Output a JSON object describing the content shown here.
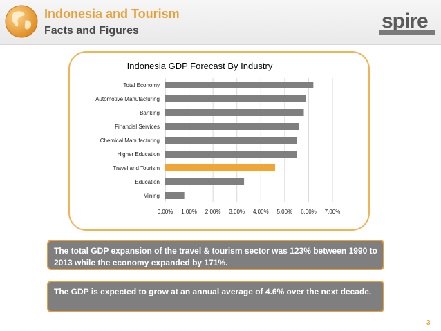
{
  "header": {
    "title": "Indonesia and Tourism",
    "subtitle": "Facts and Figures",
    "logo_text": "spire",
    "globe_icon": "globe-icon"
  },
  "chart_data": {
    "type": "bar",
    "orientation": "horizontal",
    "title": "Indonesia GDP Forecast By Industry",
    "categories": [
      "Total Economy",
      "Automotive Manufacturing",
      "Banking",
      "Financial Services",
      "Chemical Manufacturing",
      "Higher Education",
      "Travel and Tourism",
      "Education",
      "Mining"
    ],
    "values": [
      6.2,
      5.9,
      5.8,
      5.6,
      5.5,
      5.5,
      4.6,
      3.3,
      0.8
    ],
    "highlight_category": "Travel and Tourism",
    "xlim": [
      0,
      7
    ],
    "xticks": [
      "0.00%",
      "1.00%",
      "2.00%",
      "3.00%",
      "4.00%",
      "5.00%",
      "6.00%",
      "7.00%"
    ],
    "grid": true,
    "colors": {
      "bar": "#7f7f7f",
      "highlight": "#f0a535"
    }
  },
  "callouts": [
    "The total GDP expansion of the travel & tourism sector was 123% between 1990 to 2013 while the economy expanded by 171%.",
    "The GDP is expected to grow at an annual average of 4.6% over the next decade."
  ],
  "page_number": "3",
  "colors": {
    "accent": "#e8a13a",
    "callout_bg": "#7f7f7f"
  }
}
